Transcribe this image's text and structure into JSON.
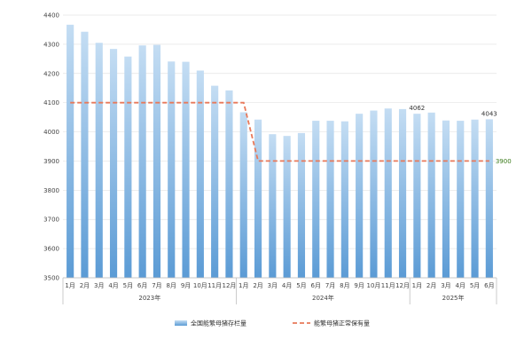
{
  "chart_data": {
    "type": "bar",
    "ylim": [
      3500,
      4400
    ],
    "yticks": [
      3500,
      3600,
      3700,
      3800,
      3900,
      4000,
      4100,
      4200,
      4300,
      4400
    ],
    "groups": [
      {
        "label": "2023年",
        "months": [
          "1月",
          "2月",
          "3月",
          "4月",
          "5月",
          "6月",
          "7月",
          "8月",
          "9月",
          "10月",
          "11月",
          "12月"
        ]
      },
      {
        "label": "2024年",
        "months": [
          "1月",
          "2月",
          "3月",
          "4月",
          "5月",
          "6月",
          "7月",
          "8月",
          "9月",
          "10月",
          "11月",
          "12月"
        ]
      },
      {
        "label": "2025年",
        "months": [
          "1月",
          "2月",
          "3月",
          "4月",
          "5月",
          "6月"
        ]
      }
    ],
    "series": [
      {
        "name": "全国能繁母猪存栏量",
        "kind": "bar",
        "color": "#5b9bd5",
        "values": [
          4367,
          4343,
          4305,
          4284,
          4258,
          4296,
          4298,
          4241,
          4240,
          4210,
          4158,
          4142,
          4067,
          4042,
          3992,
          3986,
          3996,
          4038,
          4038,
          4036,
          4062,
          4073,
          4080,
          4078,
          4062,
          4066,
          4039,
          4038,
          4042,
          4043
        ]
      },
      {
        "name": "能繁母猪正常保有量",
        "kind": "line",
        "color": "#e8795a",
        "values": [
          4100,
          4100,
          4100,
          4100,
          4100,
          4100,
          4100,
          4100,
          4100,
          4100,
          4100,
          4100,
          4100,
          3900,
          3900,
          3900,
          3900,
          3900,
          3900,
          3900,
          3900,
          3900,
          3900,
          3900,
          3900,
          3900,
          3900,
          3900,
          3900,
          3900
        ]
      }
    ],
    "annotations": [
      {
        "index": 24,
        "text": "4062",
        "series": 0
      },
      {
        "index": 29,
        "text": "4043",
        "series": 0
      },
      {
        "index": 29,
        "text": "3900",
        "series": 1
      }
    ],
    "legend_position": "bottom",
    "grid": true
  }
}
